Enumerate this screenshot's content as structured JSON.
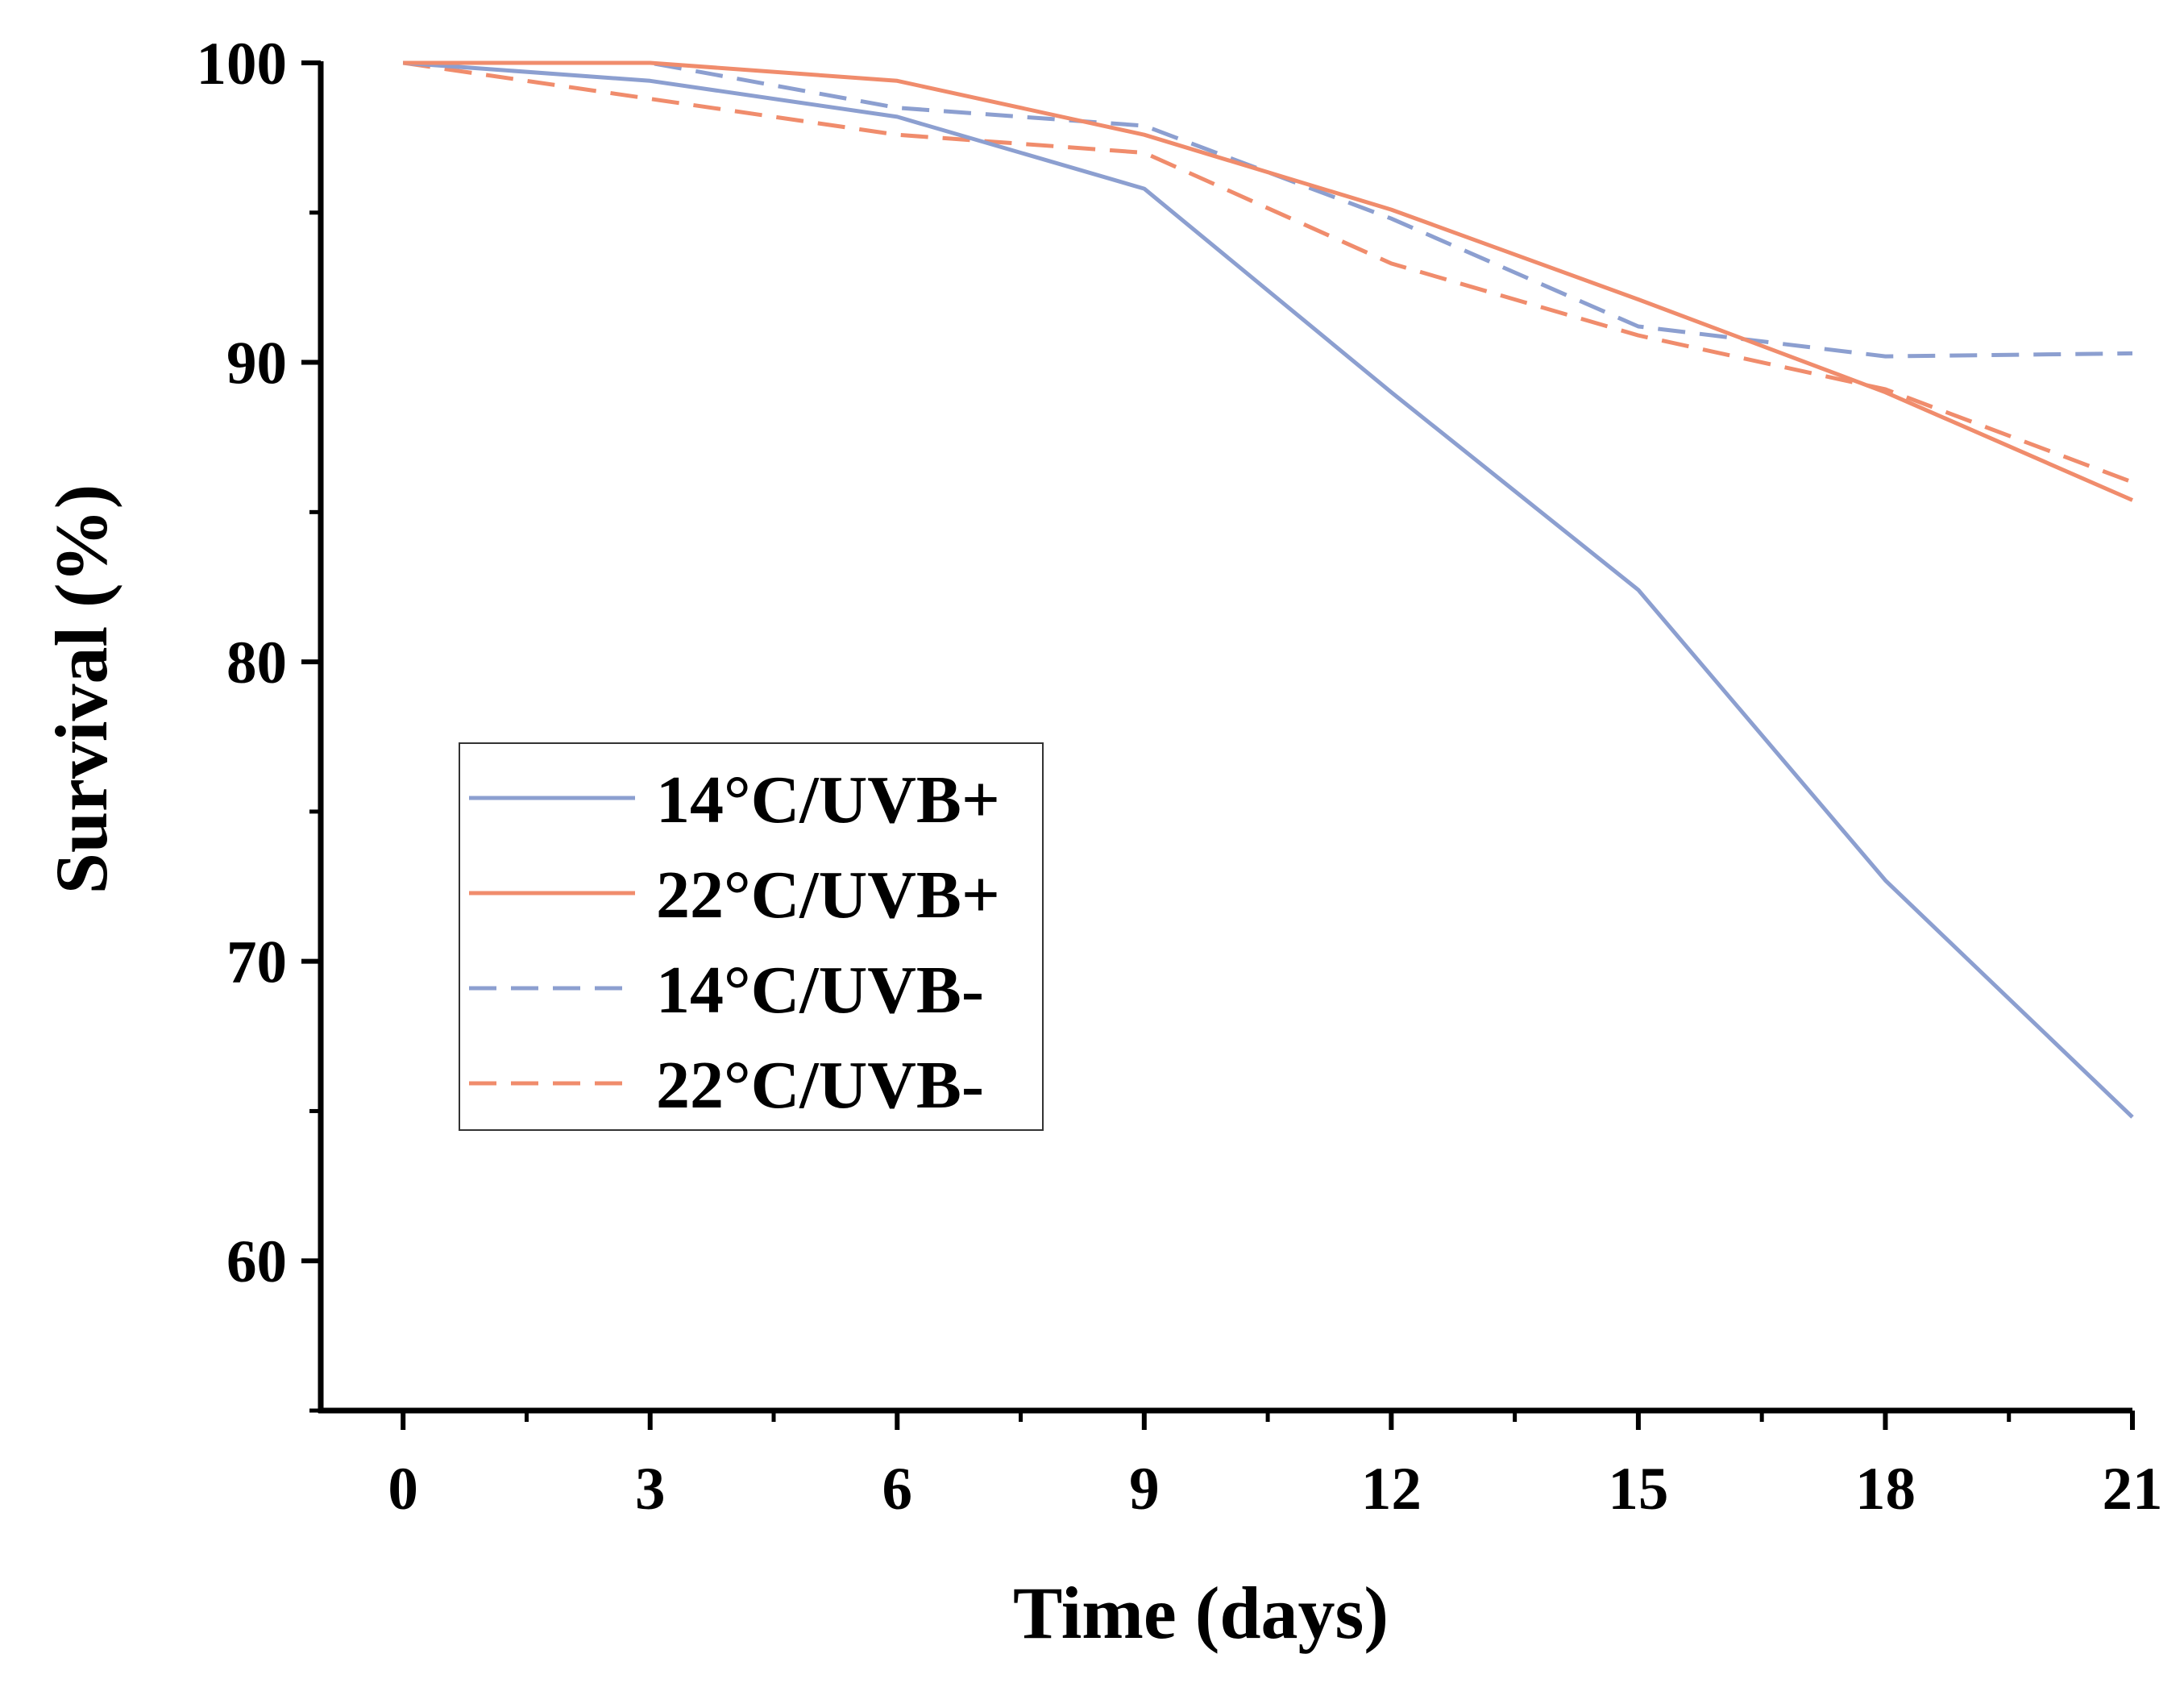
{
  "chart_data": {
    "type": "line",
    "title": "",
    "xlabel": "Time (days)",
    "ylabel": "Survival (%)",
    "xlim": [
      -1,
      21
    ],
    "ylim": [
      55,
      100
    ],
    "xticks": [
      0,
      3,
      6,
      9,
      12,
      15,
      18,
      21
    ],
    "xtick_labels": [
      "0",
      "3",
      "6",
      "9",
      "12",
      "15",
      "18",
      "21"
    ],
    "yticks": [
      60,
      70,
      80,
      90,
      100
    ],
    "ytick_labels": [
      "60",
      "70",
      "80",
      "90",
      "100"
    ],
    "grid": false,
    "legend_position": "center-left",
    "x": [
      0,
      3,
      6,
      9,
      12,
      15,
      18,
      21
    ],
    "series": [
      {
        "name": "14°C/UVB+",
        "color": "#8c9fd0",
        "dash": "solid",
        "values": [
          100,
          99.4,
          98.2,
          95.8,
          89.0,
          82.4,
          72.7,
          64.8
        ]
      },
      {
        "name": "22°C/UVB+",
        "color": "#f08c6c",
        "dash": "solid",
        "values": [
          100,
          100,
          99.4,
          97.6,
          95.1,
          92.1,
          89.0,
          85.4
        ]
      },
      {
        "name": "14°C/UVB-",
        "color": "#8c9fd0",
        "dash": "dashed",
        "values": [
          100,
          100,
          98.5,
          97.9,
          94.8,
          91.2,
          90.2,
          90.3
        ]
      },
      {
        "name": "22°C/UVB-",
        "color": "#f08c6c",
        "dash": "dashed",
        "values": [
          100,
          98.8,
          97.6,
          97.0,
          93.3,
          90.9,
          89.1,
          86.0
        ]
      }
    ]
  }
}
